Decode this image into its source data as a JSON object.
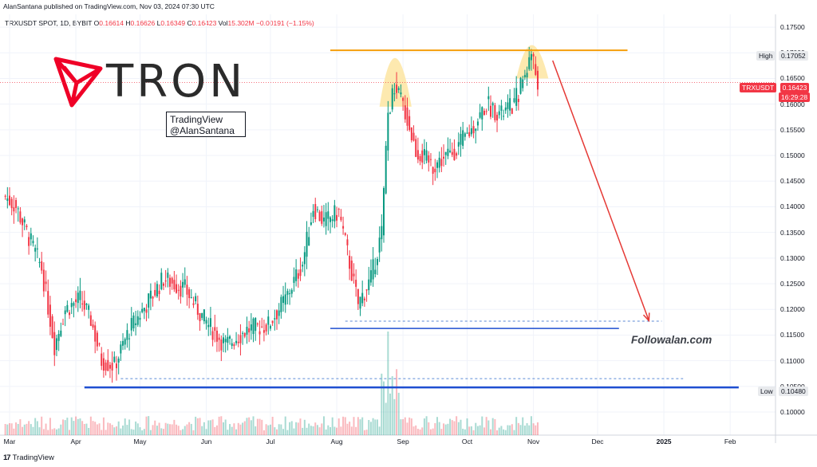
{
  "header": {
    "published": "AlanSantana published on TradingView.com, Nov 03, 2024 07:30 UTC",
    "symbol": "TRXUSDT SPOT, 1D, BYBIT",
    "ohlc": [
      {
        "k": "O",
        "v": "0.16614"
      },
      {
        "k": "H",
        "v": "0.16626"
      },
      {
        "k": "L",
        "v": "0.16349"
      },
      {
        "k": "C",
        "v": "0.16423"
      },
      {
        "k": "Vol",
        "v": "15.302M"
      },
      {
        "k": "",
        "v": "−0.00191 (−1.15%)"
      }
    ]
  },
  "logo": {
    "word": "TRON",
    "icon": "tron-triangle-logo",
    "color": "#ef0027"
  },
  "watermark_box": {
    "line1": "TradingView",
    "line2": "@AlanSantana"
  },
  "watermark": "Followalan.com",
  "footer": {
    "brand": "TradingView",
    "brand_mark": "17"
  },
  "price_labels": {
    "high": {
      "label": "High",
      "value": "0.17052"
    },
    "last": {
      "label": "TRXUSDT",
      "value": "0.16423",
      "countdown": "16:29:28"
    },
    "low": {
      "label": "Low",
      "value": "0.10480"
    }
  },
  "colors": {
    "up": "#089981",
    "down": "#f23645",
    "resistance": "#f59e0b",
    "support": "#1f4fd1",
    "top_fill": "#fde7a6",
    "arrow": "#e53935"
  },
  "chart_data": {
    "type": "candlestick",
    "title": "",
    "y_ticks": [
      "0.17500",
      "0.17000",
      "0.16500",
      "0.16000",
      "0.15500",
      "0.15000",
      "0.14500",
      "0.14000",
      "0.13500",
      "0.13000",
      "0.12500",
      "0.12000",
      "0.11500",
      "0.11000",
      "0.10500",
      "0.10000"
    ],
    "ylim": [
      0.0955,
      0.1775
    ],
    "x_ticks": [
      {
        "label": "Mar",
        "date": "2024-03-01"
      },
      {
        "label": "Apr",
        "date": "2024-04-01"
      },
      {
        "label": "May",
        "date": "2024-05-01"
      },
      {
        "label": "Jun",
        "date": "2024-06-01"
      },
      {
        "label": "Jul",
        "date": "2024-07-01"
      },
      {
        "label": "Aug",
        "date": "2024-08-01"
      },
      {
        "label": "Sep",
        "date": "2024-09-01"
      },
      {
        "label": "Oct",
        "date": "2024-10-01"
      },
      {
        "label": "Nov",
        "date": "2024-11-01"
      },
      {
        "label": "Dec",
        "date": "2024-12-01"
      },
      {
        "label": "2025",
        "date": "2025-01-01",
        "bold": true
      },
      {
        "label": "Feb",
        "date": "2025-02-01"
      }
    ],
    "price_key_points": [
      {
        "date": "2024-02-28",
        "close": 0.142
      },
      {
        "date": "2024-03-04",
        "close": 0.14
      },
      {
        "date": "2024-03-10",
        "close": 0.134
      },
      {
        "date": "2024-03-16",
        "close": 0.128
      },
      {
        "date": "2024-03-20",
        "close": 0.118
      },
      {
        "date": "2024-03-22",
        "close": 0.113
      },
      {
        "date": "2024-03-27",
        "close": 0.12
      },
      {
        "date": "2024-04-03",
        "close": 0.122
      },
      {
        "date": "2024-04-08",
        "close": 0.118
      },
      {
        "date": "2024-04-13",
        "close": 0.11
      },
      {
        "date": "2024-04-19",
        "close": 0.109
      },
      {
        "date": "2024-04-26",
        "close": 0.116
      },
      {
        "date": "2024-05-04",
        "close": 0.121
      },
      {
        "date": "2024-05-12",
        "close": 0.126
      },
      {
        "date": "2024-05-22",
        "close": 0.124
      },
      {
        "date": "2024-05-31",
        "close": 0.118
      },
      {
        "date": "2024-06-10",
        "close": 0.113
      },
      {
        "date": "2024-06-20",
        "close": 0.116
      },
      {
        "date": "2024-06-30",
        "close": 0.117
      },
      {
        "date": "2024-07-08",
        "close": 0.122
      },
      {
        "date": "2024-07-16",
        "close": 0.129
      },
      {
        "date": "2024-07-21",
        "close": 0.14
      },
      {
        "date": "2024-07-26",
        "close": 0.137
      },
      {
        "date": "2024-08-02",
        "close": 0.139
      },
      {
        "date": "2024-08-08",
        "close": 0.127
      },
      {
        "date": "2024-08-11",
        "close": 0.121
      },
      {
        "date": "2024-08-17",
        "close": 0.126
      },
      {
        "date": "2024-08-22",
        "close": 0.135
      },
      {
        "date": "2024-08-25",
        "close": 0.158
      },
      {
        "date": "2024-08-28",
        "close": 0.163
      },
      {
        "date": "2024-09-01",
        "close": 0.16
      },
      {
        "date": "2024-09-07",
        "close": 0.151
      },
      {
        "date": "2024-09-15",
        "close": 0.148
      },
      {
        "date": "2024-09-25",
        "close": 0.151
      },
      {
        "date": "2024-10-03",
        "close": 0.155
      },
      {
        "date": "2024-10-10",
        "close": 0.16
      },
      {
        "date": "2024-10-17",
        "close": 0.158
      },
      {
        "date": "2024-10-23",
        "close": 0.16
      },
      {
        "date": "2024-10-28",
        "close": 0.166
      },
      {
        "date": "2024-10-31",
        "close": 0.17
      },
      {
        "date": "2024-11-03",
        "close": 0.16423
      }
    ],
    "annotations": {
      "resistance": 0.1705,
      "support_upper": 0.1163,
      "support_lower": 0.1048,
      "dashed_upper": 0.1177,
      "dashed_lower": 0.1065,
      "projection_target": {
        "date": "2024-12-25",
        "price": 0.1178
      }
    }
  }
}
